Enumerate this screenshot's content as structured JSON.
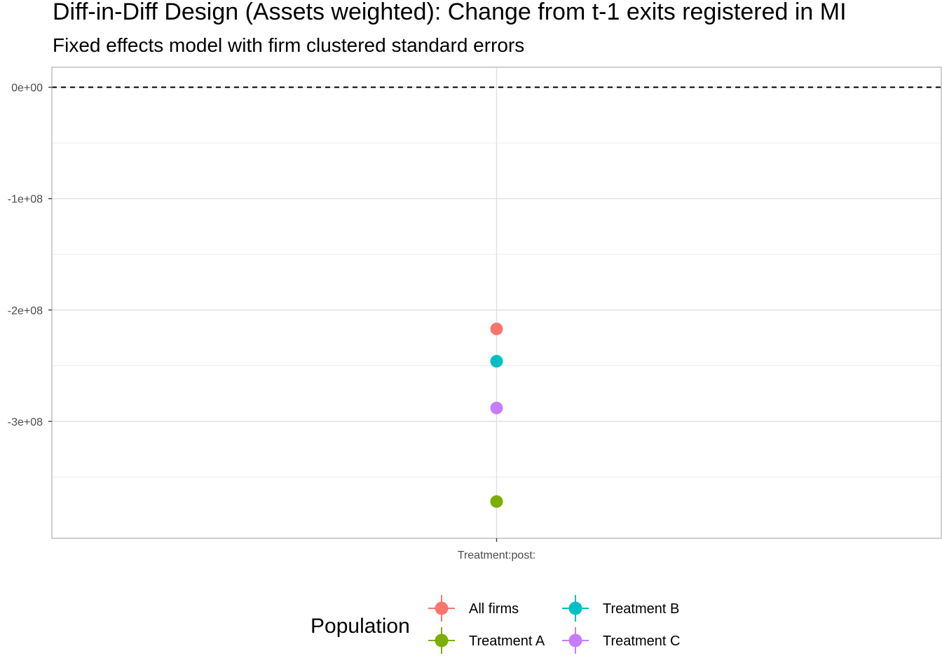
{
  "chart_data": {
    "type": "scatter",
    "title": "Diff-in-Diff Design (Assets weighted): Change from t-1 exits registered in MI",
    "subtitle": "Fixed effects model with firm clustered standard errors",
    "xlabel": "",
    "ylabel": "",
    "categories": [
      "Treatment:post:"
    ],
    "ylim": [
      -405000000,
      18000000
    ],
    "yticks": [
      0,
      -100000000,
      -200000000,
      -300000000
    ],
    "ytick_labels": [
      "0e+00",
      "-1e+08",
      "-2e+08",
      "-3e+08"
    ],
    "reference_line": {
      "y": 0,
      "style": "dashed"
    },
    "grid": true,
    "legend": {
      "title": "Population",
      "placement": "bottom"
    },
    "series": [
      {
        "name": "All firms",
        "color": "#F8766D",
        "values": [
          -217000000
        ]
      },
      {
        "name": "Treatment A",
        "color": "#7CAE00",
        "values": [
          -372000000
        ]
      },
      {
        "name": "Treatment B",
        "color": "#00BFC4",
        "values": [
          -246000000
        ]
      },
      {
        "name": "Treatment C",
        "color": "#C77CFF",
        "values": [
          -288000000
        ]
      }
    ]
  }
}
